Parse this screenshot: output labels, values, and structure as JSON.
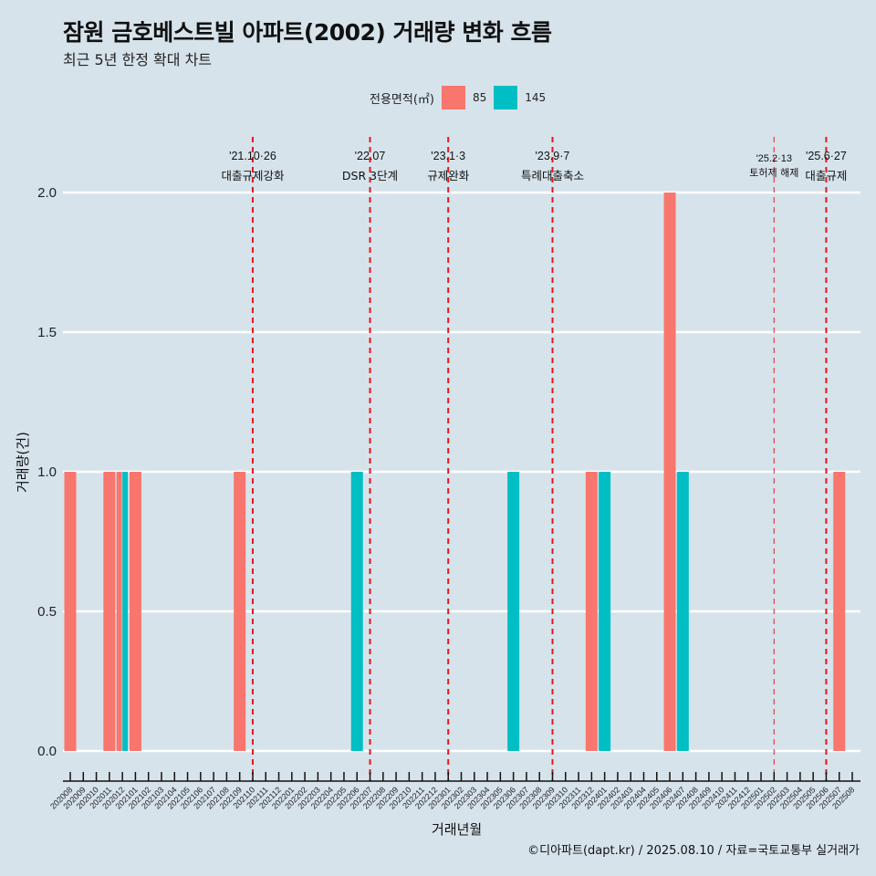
{
  "title": "잠원 금호베스트빌 아파트(2002) 거래량 변화 흐름",
  "subtitle": "최근 5년 한정 확대 차트",
  "caption": "©디아파트(dapt.kr) / 2025.08.10 / 자료=국토교통부 실거래가",
  "colors": {
    "background": "#d6e3eb",
    "s85": "#f8766d",
    "s145": "#00bfc4",
    "event_line": "#e8141c",
    "grid": "#ffffff"
  },
  "chart_data": {
    "type": "bar",
    "title": "잠원 금호베스트빌 아파트(2002) 거래량 변화 흐름",
    "subtitle": "최근 5년 한정 확대 차트",
    "xlabel": "거래년월",
    "ylabel": "거래량(건)",
    "ylim": [
      0,
      2
    ],
    "yticks": [
      "0.0",
      "0.5",
      "1.0",
      "1.5",
      "2.0"
    ],
    "legend": {
      "title": "전용면적(㎡)",
      "position": "top",
      "entries": [
        "85",
        "145"
      ]
    },
    "categories": [
      "202008",
      "202009",
      "202010",
      "202011",
      "202012",
      "202101",
      "202102",
      "202103",
      "202104",
      "202105",
      "202106",
      "202107",
      "202108",
      "202109",
      "202110",
      "202111",
      "202112",
      "202201",
      "202202",
      "202203",
      "202204",
      "202205",
      "202206",
      "202207",
      "202208",
      "202209",
      "202210",
      "202211",
      "202212",
      "202301",
      "202302",
      "202303",
      "202304",
      "202305",
      "202306",
      "202307",
      "202308",
      "202309",
      "202310",
      "202311",
      "202312",
      "202401",
      "202402",
      "202403",
      "202404",
      "202405",
      "202406",
      "202407",
      "202408",
      "202409",
      "202410",
      "202411",
      "202412",
      "202501",
      "202502",
      "202503",
      "202504",
      "202505",
      "202506",
      "202507",
      "202508"
    ],
    "series": [
      {
        "name": "85",
        "points": [
          {
            "x": "202008",
            "y": 1
          },
          {
            "x": "202011",
            "y": 1
          },
          {
            "x": "202012",
            "y": 1
          },
          {
            "x": "202101",
            "y": 1
          },
          {
            "x": "202109",
            "y": 1
          },
          {
            "x": "202312",
            "y": 1
          },
          {
            "x": "202406",
            "y": 2
          },
          {
            "x": "202507",
            "y": 1
          }
        ]
      },
      {
        "name": "145",
        "points": [
          {
            "x": "202012",
            "y": 1
          },
          {
            "x": "202206",
            "y": 1
          },
          {
            "x": "202306",
            "y": 1
          },
          {
            "x": "202401",
            "y": 1
          },
          {
            "x": "202407",
            "y": 1
          }
        ]
      }
    ],
    "events": [
      {
        "x": "202110",
        "date": "'21.10·26",
        "label": "대출규제강화",
        "style": "bold"
      },
      {
        "x": "202207",
        "date": "'22.07",
        "label": "DSR 3단계",
        "style": "bold"
      },
      {
        "x": "202301",
        "date": "'23.1·3",
        "label": "규제완화",
        "style": "bold"
      },
      {
        "x": "202309",
        "date": "'23.9·7",
        "label": "특례대출축소",
        "style": "bold"
      },
      {
        "x": "202502",
        "date": "'25.2·13",
        "label": "토허제 해제",
        "style": "thin"
      },
      {
        "x": "202506",
        "date": "'25.6·27",
        "label": "대출규제",
        "style": "bold"
      }
    ]
  }
}
